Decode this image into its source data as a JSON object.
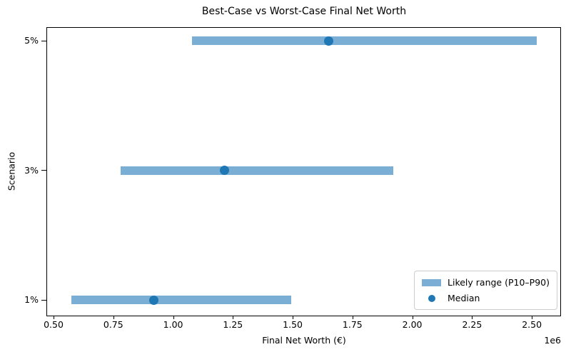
{
  "chart_data": {
    "type": "bar",
    "subtype": "horizontal-range-bar",
    "title": "Best-Case vs Worst-Case Final Net Worth",
    "xlabel": "Final Net Worth (€)",
    "ylabel": "Scenario",
    "x_offset_label": "1e6",
    "rows": [
      {
        "scenario": "5%",
        "p10": 1080000,
        "median": 1650000,
        "p90": 2520000
      },
      {
        "scenario": "3%",
        "p10": 780000,
        "median": 1215000,
        "p90": 1920000
      },
      {
        "scenario": "1%",
        "p10": 575000,
        "median": 920000,
        "p90": 1495000
      }
    ],
    "xlim": [
      473000,
      2619000
    ],
    "ylim": [
      -0.12,
      2.1
    ],
    "x_ticks": [
      500000,
      750000,
      1000000,
      1250000,
      1500000,
      1750000,
      2000000,
      2250000,
      2500000
    ],
    "x_tick_labels": [
      "0.50",
      "0.75",
      "1.00",
      "1.25",
      "1.50",
      "1.75",
      "2.00",
      "2.25",
      "2.50"
    ],
    "grid": false,
    "legend_position": "lower right",
    "legend": [
      {
        "label": "Likely range (P10–P90)",
        "marker": "bar",
        "color": "#7aaed4"
      },
      {
        "label": "Median",
        "marker": "dot",
        "color": "#1f77b4"
      }
    ],
    "colors": {
      "range_bar": "#7aaed4",
      "median_dot": "#1f77b4",
      "legend_border": "#cccccc"
    }
  }
}
